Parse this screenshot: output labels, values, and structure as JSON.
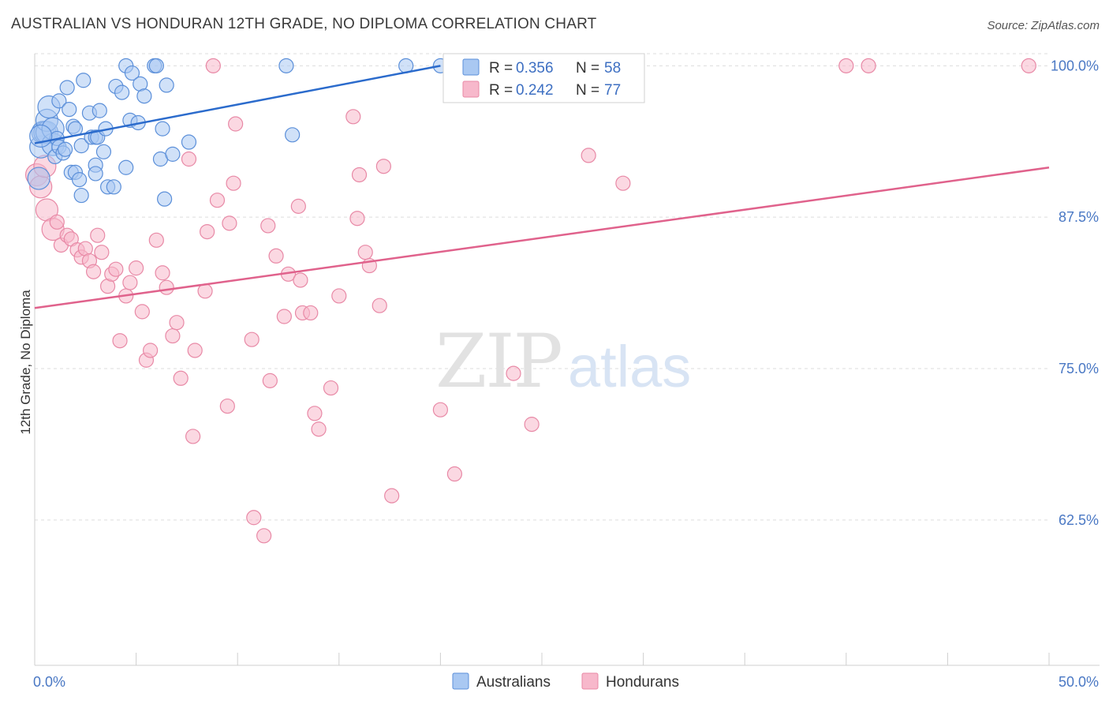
{
  "title": "AUSTRALIAN VS HONDURAN 12TH GRADE, NO DIPLOMA CORRELATION CHART",
  "source": "Source: ZipAtlas.com",
  "watermark": {
    "zip": "ZIP",
    "atlas": "atlas"
  },
  "colors": {
    "australians_fill": "#a9c8f2",
    "australians_stroke": "#5b8fd9",
    "australians_line": "#2b6bcc",
    "hondurans_fill": "#f7b8cb",
    "hondurans_stroke": "#e889a6",
    "hondurans_line": "#e0628c",
    "tick_label": "#4a78c4",
    "grid": "#dddddd"
  },
  "legend": {
    "rows": [
      {
        "r_label": "R =",
        "r_value": "0.356",
        "n_label": "N =",
        "n_value": "58",
        "series": "australians"
      },
      {
        "r_label": "R =",
        "r_value": "0.242",
        "n_label": "N =",
        "n_value": "77",
        "series": "hondurans"
      }
    ]
  },
  "chart_data": {
    "type": "scatter",
    "title": "AUSTRALIAN VS HONDURAN 12TH GRADE, NO DIPLOMA CORRELATION CHART",
    "xlabel": "",
    "ylabel": "12th Grade, No Diploma",
    "xlim": [
      0,
      50
    ],
    "ylim": [
      50.5,
      101
    ],
    "x_tick_labels": [
      {
        "value": 0,
        "label": "0.0%"
      },
      {
        "value": 50,
        "label": "50.0%"
      }
    ],
    "y_tick_labels": [
      {
        "value": 100,
        "label": "100.0%"
      },
      {
        "value": 87.5,
        "label": "87.5%"
      },
      {
        "value": 75,
        "label": "75.0%"
      },
      {
        "value": 62.5,
        "label": "62.5%"
      }
    ],
    "grid": "horizontal dashed",
    "legend_position": "top-center",
    "series": [
      {
        "name": "Australians",
        "R": 0.356,
        "N": 58,
        "trend": {
          "x": [
            0,
            20.0
          ],
          "y": [
            93.6,
            100.0
          ]
        },
        "points": [
          [
            0.2,
            90.7
          ],
          [
            0.3,
            93.3
          ],
          [
            0.4,
            94.5
          ],
          [
            0.5,
            94.5
          ],
          [
            0.6,
            94.5
          ],
          [
            0.6,
            95.5
          ],
          [
            0.7,
            96.6
          ],
          [
            0.9,
            93.5
          ],
          [
            0.9,
            94.8
          ],
          [
            1.0,
            92.5
          ],
          [
            1.1,
            94.0
          ],
          [
            1.2,
            93.3
          ],
          [
            1.2,
            97.1
          ],
          [
            1.4,
            92.8
          ],
          [
            1.5,
            93.1
          ],
          [
            1.6,
            98.2
          ],
          [
            1.7,
            96.4
          ],
          [
            1.8,
            91.2
          ],
          [
            1.9,
            95.0
          ],
          [
            2.0,
            94.8
          ],
          [
            2.0,
            91.2
          ],
          [
            2.2,
            90.6
          ],
          [
            2.3,
            93.4
          ],
          [
            2.3,
            89.3
          ],
          [
            2.4,
            98.8
          ],
          [
            2.7,
            96.1
          ],
          [
            2.8,
            94.1
          ],
          [
            3.0,
            94.1
          ],
          [
            3.0,
            91.8
          ],
          [
            3.0,
            91.1
          ],
          [
            3.1,
            94.1
          ],
          [
            3.2,
            96.3
          ],
          [
            3.4,
            92.9
          ],
          [
            3.5,
            94.8
          ],
          [
            3.6,
            90.0
          ],
          [
            3.9,
            90.0
          ],
          [
            4.0,
            98.3
          ],
          [
            4.3,
            97.8
          ],
          [
            4.5,
            91.6
          ],
          [
            4.5,
            100.0
          ],
          [
            4.7,
            95.5
          ],
          [
            4.8,
            99.4
          ],
          [
            5.1,
            95.3
          ],
          [
            5.2,
            98.5
          ],
          [
            5.4,
            97.5
          ],
          [
            5.9,
            100.0
          ],
          [
            6.0,
            100.0
          ],
          [
            6.2,
            92.3
          ],
          [
            6.3,
            94.8
          ],
          [
            6.4,
            89.0
          ],
          [
            6.5,
            98.4
          ],
          [
            6.8,
            92.7
          ],
          [
            7.6,
            93.7
          ],
          [
            12.4,
            100.0
          ],
          [
            12.7,
            94.3
          ],
          [
            18.3,
            100.0
          ],
          [
            20.0,
            100.0
          ],
          [
            0.3,
            94.2
          ]
        ]
      },
      {
        "name": "Hondurans",
        "R": 0.242,
        "N": 77,
        "trend": {
          "x": [
            0,
            50.0
          ],
          "y": [
            80.0,
            91.6
          ]
        },
        "points": [
          [
            0.1,
            91.0
          ],
          [
            0.3,
            90.0
          ],
          [
            0.5,
            91.7
          ],
          [
            0.6,
            88.1
          ],
          [
            0.9,
            86.5
          ],
          [
            1.1,
            87.1
          ],
          [
            1.3,
            85.2
          ],
          [
            1.6,
            86.0
          ],
          [
            1.8,
            85.7
          ],
          [
            2.1,
            84.8
          ],
          [
            2.3,
            84.2
          ],
          [
            2.5,
            84.9
          ],
          [
            2.7,
            83.9
          ],
          [
            2.9,
            83.0
          ],
          [
            3.1,
            86.0
          ],
          [
            3.3,
            84.6
          ],
          [
            3.6,
            81.8
          ],
          [
            3.8,
            82.8
          ],
          [
            4.0,
            83.2
          ],
          [
            4.2,
            77.3
          ],
          [
            4.5,
            81.0
          ],
          [
            4.7,
            82.1
          ],
          [
            5.0,
            83.3
          ],
          [
            5.3,
            79.7
          ],
          [
            5.5,
            75.7
          ],
          [
            5.7,
            76.5
          ],
          [
            6.0,
            85.6
          ],
          [
            6.3,
            82.9
          ],
          [
            6.5,
            81.7
          ],
          [
            6.8,
            77.7
          ],
          [
            7.0,
            78.8
          ],
          [
            7.2,
            74.2
          ],
          [
            7.6,
            92.3
          ],
          [
            7.8,
            69.4
          ],
          [
            7.9,
            76.5
          ],
          [
            8.4,
            81.4
          ],
          [
            8.5,
            86.3
          ],
          [
            8.8,
            100.0
          ],
          [
            9.0,
            88.9
          ],
          [
            9.5,
            71.9
          ],
          [
            9.6,
            87.0
          ],
          [
            9.8,
            90.3
          ],
          [
            9.9,
            95.2
          ],
          [
            10.7,
            77.4
          ],
          [
            10.8,
            62.7
          ],
          [
            11.3,
            61.2
          ],
          [
            11.5,
            86.8
          ],
          [
            11.6,
            74.0
          ],
          [
            11.9,
            84.3
          ],
          [
            12.3,
            79.3
          ],
          [
            12.5,
            82.8
          ],
          [
            13.0,
            88.4
          ],
          [
            13.1,
            82.3
          ],
          [
            13.2,
            79.6
          ],
          [
            13.6,
            79.6
          ],
          [
            13.8,
            71.3
          ],
          [
            14.0,
            70.0
          ],
          [
            14.6,
            73.4
          ],
          [
            15.0,
            81.0
          ],
          [
            15.7,
            95.8
          ],
          [
            15.9,
            87.4
          ],
          [
            16.0,
            91.0
          ],
          [
            16.3,
            84.6
          ],
          [
            16.5,
            83.5
          ],
          [
            17.0,
            80.2
          ],
          [
            17.2,
            91.7
          ],
          [
            17.6,
            64.5
          ],
          [
            20.0,
            71.6
          ],
          [
            20.7,
            66.3
          ],
          [
            23.6,
            74.6
          ],
          [
            24.5,
            70.4
          ],
          [
            25.8,
            100.0
          ],
          [
            27.3,
            92.6
          ],
          [
            29.0,
            90.3
          ],
          [
            40.0,
            100.0
          ],
          [
            41.1,
            100.0
          ],
          [
            49.0,
            100.0
          ]
        ]
      }
    ]
  },
  "bottom_legend": [
    {
      "label": "Australians",
      "series": "australians"
    },
    {
      "label": "Hondurans",
      "series": "hondurans"
    }
  ]
}
